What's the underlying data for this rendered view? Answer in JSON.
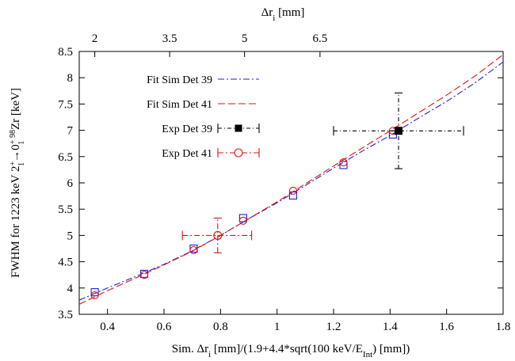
{
  "chart_data": {
    "type": "scatter",
    "xlabel_bottom": "Sim. Δr_i [mm]/(1.9+4.4*sqrt(100 keV/E_Int) [mm])",
    "xlabel_top": "Δr_i [mm]",
    "ylabel": "FWHM for 1223 keV 2_1^+→0_1^+ 98Zr [keV]",
    "xlim": [
      0.3,
      1.8
    ],
    "ylim": [
      3.5,
      8.5
    ],
    "x_ticks": [
      "0.4",
      "0.6",
      "0.8",
      "1",
      "1.2",
      "1.4",
      "1.6",
      "1.8"
    ],
    "y_ticks": [
      "3.5",
      "4",
      "4.5",
      "5",
      "5.5",
      "6",
      "6.5",
      "7",
      "7.5",
      "8",
      "8.5"
    ],
    "top_ticks": [
      {
        "label": "2",
        "at_bottom_x": 0.355
      },
      {
        "label": "3.5",
        "at_bottom_x": 0.62
      },
      {
        "label": "5",
        "at_bottom_x": 0.885
      },
      {
        "label": "6.5",
        "at_bottom_x": 1.152
      }
    ],
    "legend_position": "top-left",
    "grid": false,
    "series": [
      {
        "name": "Fit Sim Det 39",
        "kind": "curve",
        "color": "#1f1fd6",
        "dash": "8 3 2 3",
        "points": [
          [
            0.3,
            3.77
          ],
          [
            0.4,
            4.0
          ],
          [
            0.5,
            4.22
          ],
          [
            0.6,
            4.45
          ],
          [
            0.7,
            4.71
          ],
          [
            0.8,
            5.0
          ],
          [
            0.9,
            5.32
          ],
          [
            1.0,
            5.62
          ],
          [
            1.1,
            5.95
          ],
          [
            1.2,
            6.28
          ],
          [
            1.3,
            6.6
          ],
          [
            1.4,
            6.9
          ],
          [
            1.5,
            7.23
          ],
          [
            1.6,
            7.55
          ],
          [
            1.7,
            7.9
          ],
          [
            1.8,
            8.3
          ]
        ]
      },
      {
        "name": "Fit Sim Det 41",
        "kind": "curve",
        "color": "#e01010",
        "dash": "9 4",
        "points": [
          [
            0.3,
            3.69
          ],
          [
            0.4,
            3.95
          ],
          [
            0.5,
            4.19
          ],
          [
            0.6,
            4.44
          ],
          [
            0.7,
            4.7
          ],
          [
            0.8,
            5.0
          ],
          [
            0.9,
            5.32
          ],
          [
            1.0,
            5.64
          ],
          [
            1.1,
            5.98
          ],
          [
            1.2,
            6.32
          ],
          [
            1.3,
            6.66
          ],
          [
            1.4,
            6.99
          ],
          [
            1.5,
            7.33
          ],
          [
            1.6,
            7.67
          ],
          [
            1.7,
            8.03
          ],
          [
            1.8,
            8.44
          ]
        ]
      },
      {
        "name": "Sim Det 39",
        "kind": "squares",
        "color": "#1f1fd6",
        "points": [
          [
            0.355,
            3.92
          ],
          [
            0.53,
            4.27
          ],
          [
            0.705,
            4.75
          ],
          [
            0.88,
            5.33
          ],
          [
            1.057,
            5.76
          ],
          [
            1.235,
            6.34
          ],
          [
            1.41,
            6.92
          ]
        ]
      },
      {
        "name": "Sim Det 41",
        "kind": "circles",
        "color": "#e01010",
        "points": [
          [
            0.355,
            3.86
          ],
          [
            0.53,
            4.25
          ],
          [
            0.705,
            4.72
          ],
          [
            0.88,
            5.28
          ],
          [
            1.057,
            5.85
          ],
          [
            1.235,
            6.39
          ],
          [
            1.41,
            6.99
          ]
        ]
      },
      {
        "name": "Exp Det 39",
        "kind": "point_xy_error",
        "color": "#000000",
        "marker": "filled-square",
        "x": 1.43,
        "y": 6.99,
        "xerr": [
          1.2,
          1.66
        ],
        "yerr": [
          6.27,
          7.71
        ]
      },
      {
        "name": "Exp Det 41",
        "kind": "point_xy_error",
        "color": "#e01010",
        "marker": "open-circle",
        "x": 0.79,
        "y": 5.0,
        "xerr": [
          0.665,
          0.91
        ],
        "yerr": [
          4.67,
          5.33
        ]
      }
    ],
    "legend": [
      {
        "label": "Fit Sim Det 39",
        "series_index": 0
      },
      {
        "label": "Fit Sim Det 41",
        "series_index": 1
      },
      {
        "label": "Exp Det 39",
        "series_index": 4
      },
      {
        "label": "Exp Det 41",
        "series_index": 5
      }
    ]
  }
}
